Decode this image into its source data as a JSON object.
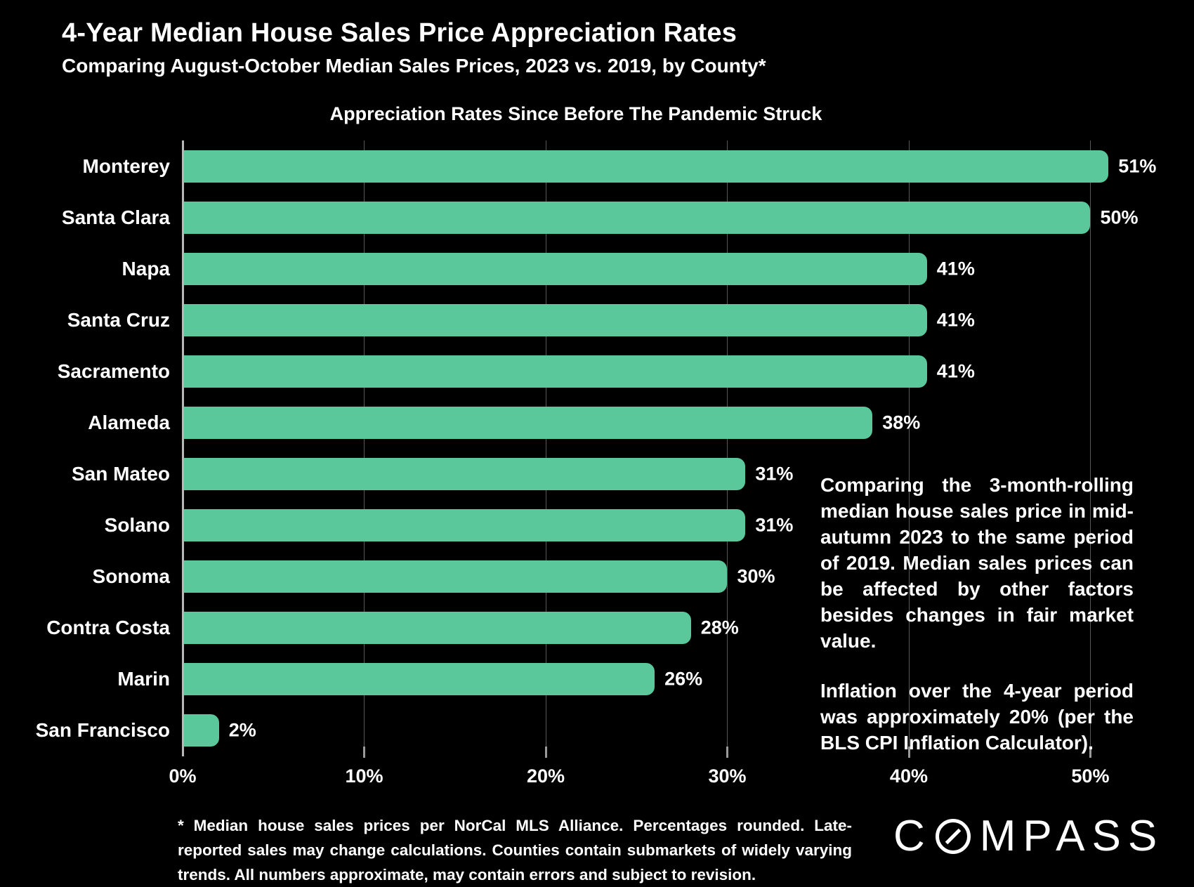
{
  "header": {
    "title": "4-Year Median House Sales Price Appreciation Rates",
    "subtitle": "Comparing August-October Median Sales Prices, 2023 vs. 2019, by County*"
  },
  "chart_data": {
    "type": "bar",
    "orientation": "horizontal",
    "title": "Appreciation Rates Since Before The Pandemic Struck",
    "categories": [
      "Monterey",
      "Santa Clara",
      "Napa",
      "Santa Cruz",
      "Sacramento",
      "Alameda",
      "San Mateo",
      "Solano",
      "Sonoma",
      "Contra Costa",
      "Marin",
      "San Francisco"
    ],
    "values": [
      51,
      50,
      41,
      41,
      41,
      38,
      31,
      31,
      30,
      28,
      26,
      2
    ],
    "value_labels": [
      "51%",
      "50%",
      "41%",
      "41%",
      "41%",
      "38%",
      "31%",
      "31%",
      "30%",
      "28%",
      "26%",
      "2%"
    ],
    "x_ticks": {
      "values": [
        0,
        10,
        20,
        30,
        40,
        50
      ],
      "labels": [
        "0%",
        "10%",
        "20%",
        "30%",
        "40%",
        "50%"
      ]
    },
    "xlim": [
      0,
      53
    ],
    "grid": true,
    "bar_color": "#5bc89c",
    "background_color": "#000000",
    "text_color": "#ffffff",
    "gridline_color": "#585858",
    "axis_color": "#b8b8b8"
  },
  "annotation": {
    "paragraph1": "Comparing the 3-month-rolling median house sales price in mid-autumn 2023 to the same period of 2019. Median sales prices can be affected by other factors besides changes in fair market value.",
    "paragraph2": "Inflation over the 4-year period was approximately 20% (per the BLS CPI Inflation Calculator)."
  },
  "footnote": "* Median house sales prices per NorCal MLS Alliance. Percentages rounded. Late-reported sales may change calculations. Counties contain submarkets of widely varying trends. All numbers approximate, may contain errors and subject to revision.",
  "logo": {
    "name": "COMPASS",
    "prefix": "C",
    "suffix": "MPASS"
  }
}
